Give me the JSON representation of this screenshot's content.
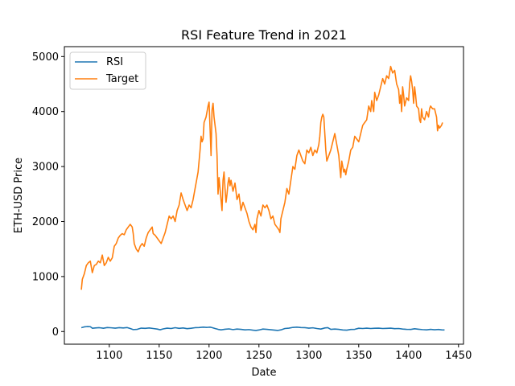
{
  "chart_data": {
    "type": "line",
    "title": "RSI Feature Trend in 2021",
    "xlabel": "Date",
    "ylabel": "ETH-USD Price",
    "xlim": [
      1055,
      1455
    ],
    "ylim": [
      -230,
      5180
    ],
    "xticks": [
      1100,
      1150,
      1200,
      1250,
      1300,
      1350,
      1400,
      1450
    ],
    "yticks": [
      0,
      1000,
      2000,
      3000,
      4000,
      5000
    ],
    "grid": false,
    "legend_position": "upper-left",
    "series": [
      {
        "name": "RSI",
        "color": "#1f77b4",
        "points": [
          [
            1072,
            70
          ],
          [
            1075,
            85
          ],
          [
            1078,
            90
          ],
          [
            1081,
            88
          ],
          [
            1083,
            60
          ],
          [
            1086,
            65
          ],
          [
            1090,
            70
          ],
          [
            1094,
            60
          ],
          [
            1098,
            72
          ],
          [
            1102,
            68
          ],
          [
            1106,
            62
          ],
          [
            1110,
            70
          ],
          [
            1114,
            65
          ],
          [
            1118,
            72
          ],
          [
            1121,
            55
          ],
          [
            1124,
            35
          ],
          [
            1128,
            40
          ],
          [
            1132,
            62
          ],
          [
            1136,
            58
          ],
          [
            1140,
            65
          ],
          [
            1144,
            55
          ],
          [
            1148,
            45
          ],
          [
            1151,
            32
          ],
          [
            1154,
            48
          ],
          [
            1158,
            62
          ],
          [
            1162,
            55
          ],
          [
            1166,
            70
          ],
          [
            1170,
            58
          ],
          [
            1174,
            65
          ],
          [
            1178,
            52
          ],
          [
            1182,
            60
          ],
          [
            1186,
            70
          ],
          [
            1190,
            72
          ],
          [
            1194,
            80
          ],
          [
            1198,
            75
          ],
          [
            1201,
            80
          ],
          [
            1203,
            72
          ],
          [
            1206,
            55
          ],
          [
            1209,
            40
          ],
          [
            1212,
            30
          ],
          [
            1216,
            42
          ],
          [
            1220,
            48
          ],
          [
            1224,
            35
          ],
          [
            1228,
            45
          ],
          [
            1232,
            40
          ],
          [
            1236,
            30
          ],
          [
            1240,
            35
          ],
          [
            1244,
            25
          ],
          [
            1247,
            20
          ],
          [
            1250,
            28
          ],
          [
            1254,
            45
          ],
          [
            1258,
            40
          ],
          [
            1262,
            32
          ],
          [
            1266,
            25
          ],
          [
            1269,
            20
          ],
          [
            1272,
            30
          ],
          [
            1276,
            55
          ],
          [
            1280,
            62
          ],
          [
            1284,
            75
          ],
          [
            1288,
            80
          ],
          [
            1292,
            72
          ],
          [
            1296,
            70
          ],
          [
            1300,
            62
          ],
          [
            1304,
            68
          ],
          [
            1308,
            55
          ],
          [
            1312,
            45
          ],
          [
            1316,
            65
          ],
          [
            1319,
            70
          ],
          [
            1322,
            40
          ],
          [
            1326,
            45
          ],
          [
            1330,
            40
          ],
          [
            1334,
            28
          ],
          [
            1338,
            25
          ],
          [
            1342,
            38
          ],
          [
            1346,
            40
          ],
          [
            1350,
            60
          ],
          [
            1354,
            55
          ],
          [
            1358,
            62
          ],
          [
            1362,
            55
          ],
          [
            1366,
            60
          ],
          [
            1370,
            62
          ],
          [
            1374,
            55
          ],
          [
            1378,
            58
          ],
          [
            1382,
            62
          ],
          [
            1386,
            52
          ],
          [
            1390,
            55
          ],
          [
            1394,
            45
          ],
          [
            1398,
            40
          ],
          [
            1402,
            38
          ],
          [
            1406,
            50
          ],
          [
            1410,
            42
          ],
          [
            1414,
            35
          ],
          [
            1418,
            30
          ],
          [
            1422,
            40
          ],
          [
            1426,
            32
          ],
          [
            1430,
            38
          ],
          [
            1433,
            30
          ],
          [
            1436,
            28
          ]
        ]
      },
      {
        "name": "Target",
        "color": "#ff7f0e",
        "points": [
          [
            1072,
            760
          ],
          [
            1073,
            950
          ],
          [
            1075,
            1050
          ],
          [
            1077,
            1200
          ],
          [
            1079,
            1250
          ],
          [
            1081,
            1280
          ],
          [
            1083,
            1070
          ],
          [
            1085,
            1200
          ],
          [
            1087,
            1220
          ],
          [
            1089,
            1280
          ],
          [
            1091,
            1250
          ],
          [
            1093,
            1390
          ],
          [
            1095,
            1200
          ],
          [
            1097,
            1250
          ],
          [
            1099,
            1350
          ],
          [
            1101,
            1280
          ],
          [
            1103,
            1340
          ],
          [
            1105,
            1550
          ],
          [
            1107,
            1600
          ],
          [
            1109,
            1700
          ],
          [
            1111,
            1750
          ],
          [
            1113,
            1780
          ],
          [
            1115,
            1760
          ],
          [
            1117,
            1850
          ],
          [
            1119,
            1900
          ],
          [
            1121,
            1950
          ],
          [
            1123,
            1900
          ],
          [
            1124,
            1780
          ],
          [
            1125,
            1600
          ],
          [
            1127,
            1500
          ],
          [
            1129,
            1450
          ],
          [
            1131,
            1550
          ],
          [
            1133,
            1600
          ],
          [
            1135,
            1550
          ],
          [
            1137,
            1700
          ],
          [
            1139,
            1800
          ],
          [
            1141,
            1850
          ],
          [
            1143,
            1900
          ],
          [
            1144,
            1780
          ],
          [
            1146,
            1750
          ],
          [
            1148,
            1700
          ],
          [
            1150,
            1650
          ],
          [
            1152,
            1600
          ],
          [
            1154,
            1700
          ],
          [
            1156,
            1800
          ],
          [
            1158,
            1950
          ],
          [
            1160,
            2100
          ],
          [
            1162,
            2050
          ],
          [
            1164,
            2100
          ],
          [
            1166,
            2000
          ],
          [
            1168,
            2200
          ],
          [
            1170,
            2300
          ],
          [
            1172,
            2520
          ],
          [
            1174,
            2400
          ],
          [
            1176,
            2300
          ],
          [
            1178,
            2200
          ],
          [
            1180,
            2300
          ],
          [
            1182,
            2250
          ],
          [
            1184,
            2400
          ],
          [
            1186,
            2600
          ],
          [
            1188,
            2800
          ],
          [
            1189,
            2900
          ],
          [
            1190,
            3100
          ],
          [
            1191,
            3300
          ],
          [
            1192,
            3550
          ],
          [
            1193,
            3450
          ],
          [
            1194,
            3500
          ],
          [
            1195,
            3800
          ],
          [
            1196,
            3850
          ],
          [
            1197,
            3900
          ],
          [
            1198,
            4000
          ],
          [
            1199,
            4100
          ],
          [
            1200,
            4170
          ],
          [
            1201,
            3700
          ],
          [
            1202,
            3200
          ],
          [
            1203,
            4030
          ],
          [
            1204,
            4150
          ],
          [
            1205,
            3900
          ],
          [
            1206,
            3750
          ],
          [
            1207,
            3600
          ],
          [
            1208,
            3200
          ],
          [
            1209,
            2500
          ],
          [
            1210,
            2800
          ],
          [
            1211,
            2600
          ],
          [
            1212,
            2400
          ],
          [
            1213,
            2200
          ],
          [
            1214,
            2750
          ],
          [
            1215,
            2900
          ],
          [
            1216,
            2600
          ],
          [
            1217,
            2350
          ],
          [
            1218,
            2500
          ],
          [
            1219,
            2700
          ],
          [
            1220,
            2800
          ],
          [
            1221,
            2650
          ],
          [
            1222,
            2750
          ],
          [
            1224,
            2550
          ],
          [
            1226,
            2700
          ],
          [
            1228,
            2400
          ],
          [
            1230,
            2500
          ],
          [
            1232,
            2200
          ],
          [
            1234,
            2350
          ],
          [
            1236,
            2250
          ],
          [
            1238,
            2150
          ],
          [
            1240,
            2000
          ],
          [
            1242,
            1900
          ],
          [
            1244,
            1850
          ],
          [
            1246,
            1950
          ],
          [
            1247,
            1800
          ],
          [
            1248,
            2050
          ],
          [
            1250,
            2200
          ],
          [
            1252,
            2100
          ],
          [
            1254,
            2300
          ],
          [
            1256,
            2250
          ],
          [
            1258,
            2300
          ],
          [
            1260,
            2200
          ],
          [
            1262,
            2050
          ],
          [
            1264,
            2100
          ],
          [
            1266,
            1950
          ],
          [
            1268,
            1900
          ],
          [
            1270,
            1850
          ],
          [
            1271,
            1800
          ],
          [
            1272,
            2050
          ],
          [
            1274,
            2200
          ],
          [
            1276,
            2350
          ],
          [
            1278,
            2600
          ],
          [
            1280,
            2500
          ],
          [
            1282,
            2750
          ],
          [
            1284,
            3000
          ],
          [
            1286,
            2950
          ],
          [
            1288,
            3200
          ],
          [
            1290,
            3300
          ],
          [
            1292,
            3200
          ],
          [
            1294,
            3100
          ],
          [
            1296,
            3050
          ],
          [
            1298,
            3300
          ],
          [
            1300,
            3250
          ],
          [
            1302,
            3350
          ],
          [
            1304,
            3200
          ],
          [
            1306,
            3300
          ],
          [
            1308,
            3250
          ],
          [
            1310,
            3400
          ],
          [
            1311,
            3550
          ],
          [
            1312,
            3800
          ],
          [
            1313,
            3900
          ],
          [
            1314,
            3950
          ],
          [
            1315,
            3900
          ],
          [
            1316,
            3600
          ],
          [
            1317,
            3300
          ],
          [
            1318,
            3100
          ],
          [
            1320,
            3200
          ],
          [
            1322,
            3300
          ],
          [
            1324,
            3450
          ],
          [
            1326,
            3600
          ],
          [
            1328,
            3400
          ],
          [
            1330,
            3200
          ],
          [
            1331,
            3000
          ],
          [
            1332,
            2800
          ],
          [
            1333,
            3100
          ],
          [
            1334,
            3000
          ],
          [
            1335,
            2900
          ],
          [
            1336,
            2950
          ],
          [
            1337,
            2850
          ],
          [
            1338,
            2950
          ],
          [
            1340,
            3100
          ],
          [
            1342,
            3300
          ],
          [
            1344,
            3350
          ],
          [
            1346,
            3550
          ],
          [
            1348,
            3500
          ],
          [
            1350,
            3450
          ],
          [
            1352,
            3600
          ],
          [
            1354,
            3750
          ],
          [
            1356,
            3800
          ],
          [
            1358,
            3850
          ],
          [
            1360,
            4100
          ],
          [
            1362,
            4000
          ],
          [
            1363,
            4200
          ],
          [
            1364,
            4100
          ],
          [
            1365,
            4000
          ],
          [
            1366,
            4350
          ],
          [
            1368,
            4200
          ],
          [
            1370,
            4300
          ],
          [
            1372,
            4450
          ],
          [
            1374,
            4600
          ],
          [
            1376,
            4500
          ],
          [
            1378,
            4650
          ],
          [
            1380,
            4600
          ],
          [
            1382,
            4820
          ],
          [
            1384,
            4700
          ],
          [
            1386,
            4750
          ],
          [
            1388,
            4500
          ],
          [
            1390,
            4400
          ],
          [
            1391,
            4150
          ],
          [
            1392,
            4300
          ],
          [
            1393,
            4000
          ],
          [
            1394,
            4450
          ],
          [
            1395,
            4300
          ],
          [
            1396,
            4100
          ],
          [
            1398,
            4250
          ],
          [
            1400,
            4200
          ],
          [
            1401,
            4500
          ],
          [
            1402,
            4650
          ],
          [
            1403,
            4550
          ],
          [
            1404,
            4400
          ],
          [
            1405,
            4150
          ],
          [
            1406,
            4450
          ],
          [
            1407,
            4300
          ],
          [
            1408,
            4100
          ],
          [
            1410,
            4050
          ],
          [
            1411,
            3850
          ],
          [
            1412,
            3800
          ],
          [
            1413,
            4050
          ],
          [
            1414,
            3900
          ],
          [
            1416,
            3850
          ],
          [
            1418,
            4000
          ],
          [
            1420,
            3900
          ],
          [
            1421,
            4050
          ],
          [
            1422,
            4100
          ],
          [
            1424,
            4050
          ],
          [
            1426,
            4050
          ],
          [
            1428,
            3900
          ],
          [
            1429,
            3650
          ],
          [
            1430,
            3750
          ],
          [
            1431,
            3700
          ],
          [
            1433,
            3750
          ],
          [
            1434,
            3800
          ]
        ]
      }
    ]
  }
}
